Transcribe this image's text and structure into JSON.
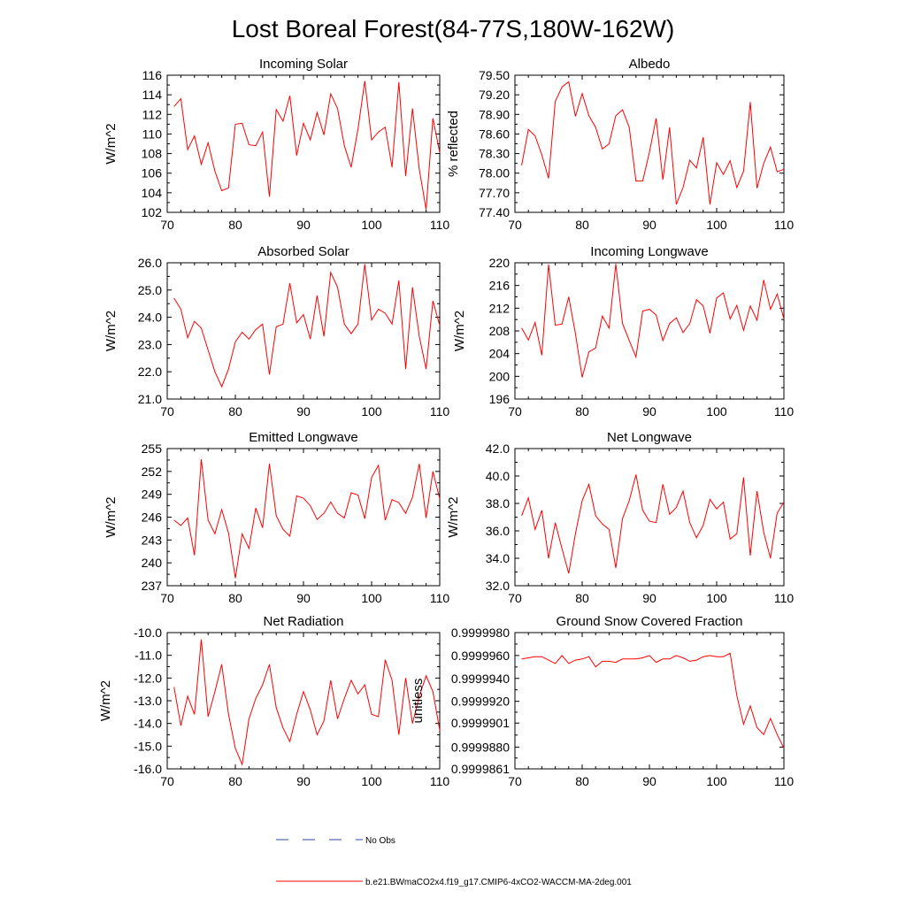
{
  "figure_title": "Lost Boreal Forest(84-77S,180W-162W)",
  "legend": {
    "obs_label": "No Obs",
    "obs_color": "#3344aa",
    "model_label": "b.e21.BWmaCO2x4.f19_g17.CMIP6-4xCO2-WACCM-MA-2deg.001",
    "model_color": "#ff0000"
  },
  "x_axis": {
    "xlim": [
      70,
      110
    ],
    "ticks": [
      70,
      80,
      90,
      100,
      110
    ],
    "tick_labels": [
      "70",
      "80",
      "90",
      "100",
      "110"
    ]
  },
  "chart_data": [
    {
      "type": "line",
      "title": "Incoming Solar",
      "ylabel": "W/m^2",
      "ylim": [
        102,
        116
      ],
      "yticks": [
        102,
        104,
        106,
        108,
        110,
        112,
        114,
        116
      ],
      "ytick_labels": [
        "102",
        "104",
        "106",
        "108",
        "110",
        "112",
        "114",
        "116"
      ],
      "series": [
        {
          "name": "model",
          "x": [
            71,
            72,
            73,
            74,
            75,
            76,
            77,
            78,
            79,
            80,
            81,
            82,
            83,
            84,
            85,
            86,
            87,
            88,
            89,
            90,
            91,
            92,
            93,
            94,
            95,
            96,
            97,
            98,
            99,
            100,
            101,
            102,
            103,
            104,
            105,
            106,
            107,
            108,
            109,
            110
          ],
          "values": [
            112.8,
            113.6,
            108.4,
            109.8,
            106.9,
            109.1,
            106.2,
            104.2,
            104.5,
            111.0,
            111.1,
            108.9,
            108.8,
            110.2,
            103.6,
            112.5,
            111.3,
            113.9,
            107.8,
            111.1,
            109.4,
            112.2,
            109.9,
            114.1,
            112.6,
            108.8,
            106.6,
            110.5,
            115.4,
            109.4,
            110.2,
            110.7,
            106.6,
            115.3,
            105.7,
            112.6,
            106.4,
            102.3,
            111.6,
            108.1
          ]
        }
      ]
    },
    {
      "type": "line",
      "title": "Albedo",
      "ylabel": "% reflected",
      "ylim": [
        77.4,
        79.5
      ],
      "yticks": [
        77.4,
        77.7,
        78.0,
        78.3,
        78.6,
        78.9,
        79.2,
        79.5
      ],
      "ytick_labels": [
        "77.40",
        "77.70",
        "78.00",
        "78.30",
        "78.60",
        "78.90",
        "79.20",
        "79.50"
      ],
      "series": [
        {
          "name": "model",
          "x": [
            71,
            72,
            73,
            74,
            75,
            76,
            77,
            78,
            79,
            80,
            81,
            82,
            83,
            84,
            85,
            86,
            87,
            88,
            89,
            90,
            91,
            92,
            93,
            94,
            95,
            96,
            97,
            98,
            99,
            100,
            101,
            102,
            103,
            104,
            105,
            106,
            107,
            108,
            109,
            110
          ],
          "values": [
            78.12,
            78.67,
            78.57,
            78.28,
            77.92,
            79.1,
            79.32,
            79.4,
            78.87,
            79.22,
            78.88,
            78.7,
            78.37,
            78.45,
            78.88,
            78.97,
            78.7,
            77.88,
            77.88,
            78.32,
            78.84,
            77.9,
            78.7,
            77.52,
            77.78,
            78.2,
            78.08,
            78.55,
            77.52,
            78.16,
            77.98,
            78.19,
            77.78,
            78.03,
            79.09,
            77.77,
            78.15,
            78.4,
            78.02,
            78.06
          ]
        }
      ]
    },
    {
      "type": "line",
      "title": "Absorbed Solar",
      "ylabel": "W/m^2",
      "ylim": [
        21.0,
        26.0
      ],
      "yticks": [
        21.0,
        22.0,
        23.0,
        24.0,
        25.0,
        26.0
      ],
      "ytick_labels": [
        "21.0",
        "22.0",
        "23.0",
        "24.0",
        "25.0",
        "26.0"
      ],
      "series": [
        {
          "name": "model",
          "x": [
            71,
            72,
            73,
            74,
            75,
            76,
            77,
            78,
            79,
            80,
            81,
            82,
            83,
            84,
            85,
            86,
            87,
            88,
            89,
            90,
            91,
            92,
            93,
            94,
            95,
            96,
            97,
            98,
            99,
            100,
            101,
            102,
            103,
            104,
            105,
            106,
            107,
            108,
            109,
            110
          ],
          "values": [
            24.7,
            24.3,
            23.25,
            23.85,
            23.6,
            22.8,
            22.0,
            21.45,
            22.1,
            23.1,
            23.45,
            23.2,
            23.55,
            23.75,
            21.9,
            23.65,
            23.75,
            25.25,
            23.8,
            24.1,
            23.2,
            24.8,
            23.3,
            25.65,
            25.1,
            23.75,
            23.4,
            23.75,
            25.95,
            23.9,
            24.3,
            24.15,
            23.75,
            25.35,
            22.1,
            25.1,
            23.3,
            22.1,
            24.6,
            23.7
          ]
        }
      ]
    },
    {
      "type": "line",
      "title": "Incoming Longwave",
      "ylabel": "W/m^2",
      "ylim": [
        196,
        220
      ],
      "yticks": [
        196,
        200,
        204,
        208,
        212,
        216,
        220
      ],
      "ytick_labels": [
        "196",
        "200",
        "204",
        "208",
        "212",
        "216",
        "220"
      ],
      "series": [
        {
          "name": "model",
          "x": [
            71,
            72,
            73,
            74,
            75,
            76,
            77,
            78,
            79,
            80,
            81,
            82,
            83,
            84,
            85,
            86,
            87,
            88,
            89,
            90,
            91,
            92,
            93,
            94,
            95,
            96,
            97,
            98,
            99,
            100,
            101,
            102,
            103,
            104,
            105,
            106,
            107,
            108,
            109,
            110
          ],
          "values": [
            208.5,
            206.4,
            209.5,
            203.7,
            219.7,
            209.0,
            209.2,
            214.0,
            207.5,
            199.8,
            204.3,
            205.0,
            210.6,
            208.5,
            219.8,
            209.3,
            206.3,
            203.4,
            211.5,
            211.8,
            210.8,
            206.3,
            209.3,
            210.3,
            207.7,
            209.3,
            213.5,
            212.4,
            207.6,
            213.8,
            214.7,
            210.1,
            212.5,
            208.1,
            212.4,
            209.9,
            217.0,
            211.8,
            214.5,
            210.1
          ]
        }
      ]
    },
    {
      "type": "line",
      "title": "Emitted Longwave",
      "ylabel": "W/m^2",
      "ylim": [
        237,
        255
      ],
      "yticks": [
        237,
        240,
        243,
        246,
        249,
        252,
        255
      ],
      "ytick_labels": [
        "237",
        "240",
        "243",
        "246",
        "249",
        "252",
        "255"
      ],
      "series": [
        {
          "name": "model",
          "x": [
            71,
            72,
            73,
            74,
            75,
            76,
            77,
            78,
            79,
            80,
            81,
            82,
            83,
            84,
            85,
            86,
            87,
            88,
            89,
            90,
            91,
            92,
            93,
            94,
            95,
            96,
            97,
            98,
            99,
            100,
            101,
            102,
            103,
            104,
            105,
            106,
            107,
            108,
            109,
            110
          ],
          "values": [
            245.6,
            244.9,
            245.9,
            241.0,
            253.6,
            245.6,
            243.8,
            247.0,
            243.9,
            238.0,
            243.8,
            241.9,
            247.2,
            244.6,
            253.0,
            246.2,
            244.4,
            243.5,
            248.8,
            248.5,
            247.5,
            245.7,
            246.5,
            248.0,
            246.5,
            245.9,
            249.2,
            248.9,
            245.8,
            251.2,
            252.8,
            245.6,
            248.3,
            247.9,
            246.5,
            248.6,
            253.0,
            245.9,
            252.0,
            248.4
          ]
        }
      ]
    },
    {
      "type": "line",
      "title": "Net Longwave",
      "ylabel": "W/m^2",
      "ylim": [
        32.0,
        42.0
      ],
      "yticks": [
        32.0,
        34.0,
        36.0,
        38.0,
        40.0,
        42.0
      ],
      "ytick_labels": [
        "32.0",
        "34.0",
        "36.0",
        "38.0",
        "40.0",
        "42.0"
      ],
      "series": [
        {
          "name": "model",
          "x": [
            71,
            72,
            73,
            74,
            75,
            76,
            77,
            78,
            79,
            80,
            81,
            82,
            83,
            84,
            85,
            86,
            87,
            88,
            89,
            90,
            91,
            92,
            93,
            94,
            95,
            96,
            97,
            98,
            99,
            100,
            101,
            102,
            103,
            104,
            105,
            106,
            107,
            108,
            109,
            110
          ],
          "values": [
            37.1,
            38.4,
            36.1,
            37.5,
            34.0,
            36.6,
            34.7,
            32.9,
            35.8,
            38.2,
            39.4,
            37.1,
            36.5,
            36.1,
            33.3,
            36.9,
            38.2,
            40.1,
            37.5,
            36.7,
            36.6,
            39.4,
            37.2,
            37.7,
            38.9,
            36.6,
            35.5,
            36.4,
            38.3,
            37.6,
            38.1,
            35.4,
            35.8,
            39.9,
            34.2,
            38.9,
            35.9,
            34.0,
            37.3,
            38.1
          ]
        }
      ]
    },
    {
      "type": "line",
      "title": "Net Radiation",
      "ylabel": "W/m^2",
      "ylim": [
        -16.0,
        -10.0
      ],
      "yticks": [
        -16.0,
        -15.0,
        -14.0,
        -13.0,
        -12.0,
        -11.0,
        -10.0
      ],
      "ytick_labels": [
        "-16.0",
        "-15.0",
        "-14.0",
        "-13.0",
        "-12.0",
        "-11.0",
        "-10.0"
      ],
      "series": [
        {
          "name": "model",
          "x": [
            71,
            72,
            73,
            74,
            75,
            76,
            77,
            78,
            79,
            80,
            81,
            82,
            83,
            84,
            85,
            86,
            87,
            88,
            89,
            90,
            91,
            92,
            93,
            94,
            95,
            96,
            97,
            98,
            99,
            100,
            101,
            102,
            103,
            104,
            105,
            106,
            107,
            108,
            109,
            110
          ],
          "values": [
            -12.4,
            -14.1,
            -12.8,
            -13.6,
            -10.3,
            -13.7,
            -12.6,
            -11.4,
            -13.6,
            -15.1,
            -15.8,
            -13.8,
            -12.9,
            -12.3,
            -11.4,
            -13.3,
            -14.2,
            -14.8,
            -13.6,
            -12.6,
            -13.4,
            -14.5,
            -13.9,
            -12.1,
            -13.8,
            -12.9,
            -12.1,
            -12.7,
            -12.3,
            -13.6,
            -13.7,
            -11.2,
            -12.1,
            -14.5,
            -12.0,
            -14.0,
            -12.8,
            -11.9,
            -12.6,
            -14.3
          ]
        }
      ]
    },
    {
      "type": "line",
      "title": "Ground Snow Covered Fraction",
      "ylabel": "unitless",
      "ylim": [
        0.9999861,
        0.999998
      ],
      "yticks": [
        0.9999861,
        0.999988,
        0.9999901,
        0.999992,
        0.999994,
        0.999996,
        0.999998
      ],
      "ytick_labels": [
        "0.9999861",
        "0.9999880",
        "0.9999901",
        "0.9999920",
        "0.9999940",
        "0.9999960",
        "0.9999980"
      ],
      "series": [
        {
          "name": "model",
          "x": [
            71,
            72,
            73,
            74,
            75,
            76,
            77,
            78,
            79,
            80,
            81,
            82,
            83,
            84,
            85,
            86,
            87,
            88,
            89,
            90,
            91,
            92,
            93,
            94,
            95,
            96,
            97,
            98,
            99,
            100,
            101,
            102,
            103,
            104,
            105,
            106,
            107,
            108,
            109,
            110
          ],
          "values": [
            0.9999957,
            0.9999958,
            0.9999959,
            0.9999959,
            0.9999956,
            0.9999953,
            0.999996,
            0.9999953,
            0.9999956,
            0.9999957,
            0.9999959,
            0.999995,
            0.9999955,
            0.9999955,
            0.9999954,
            0.9999957,
            0.9999957,
            0.9999957,
            0.9999958,
            0.999996,
            0.9999954,
            0.9999957,
            0.9999957,
            0.999996,
            0.9999958,
            0.9999955,
            0.9999956,
            0.9999959,
            0.999996,
            0.9999959,
            0.9999959,
            0.9999962,
            0.9999925,
            0.99999,
            0.9999916,
            0.9999897,
            0.9999891,
            0.9999905,
            0.9999891,
            0.9999879
          ]
        }
      ]
    }
  ]
}
